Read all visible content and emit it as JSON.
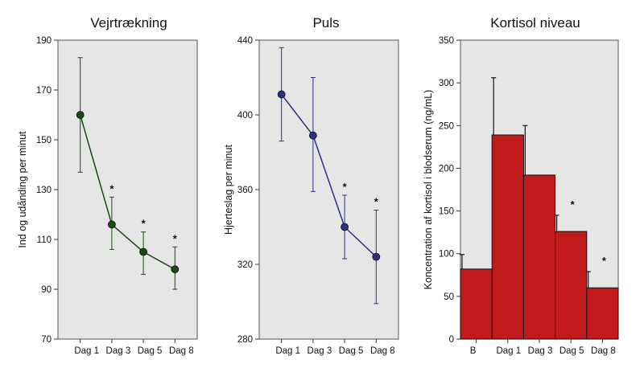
{
  "chart_data": [
    {
      "type": "line",
      "title": "Vejrtrækning",
      "xlabel": "",
      "ylabel": "Ind og udånding per minut",
      "categories": [
        "Dag 1",
        "Dag 3",
        "Dag 5",
        "Dag 8"
      ],
      "values": [
        160,
        116,
        105,
        98
      ],
      "error_low": [
        137,
        106,
        96,
        90
      ],
      "error_high": [
        183,
        127,
        113,
        107
      ],
      "annotations": [
        "",
        "*",
        "*",
        "*"
      ],
      "ylim": [
        70,
        190
      ],
      "yticks": [
        70,
        90,
        110,
        130,
        150,
        170,
        190
      ],
      "color": "#1a4a14",
      "grid": false
    },
    {
      "type": "line",
      "title": "Puls",
      "xlabel": "",
      "ylabel": "Hjerteslag per minut",
      "categories": [
        "Dag 1",
        "Dag 3",
        "Dag 5",
        "Dag 8"
      ],
      "values": [
        411,
        389,
        340,
        324
      ],
      "error_low": [
        386,
        359,
        323,
        299
      ],
      "error_high": [
        436,
        420,
        357,
        349
      ],
      "annotations": [
        "",
        "",
        "*",
        "*"
      ],
      "ylim": [
        280,
        440
      ],
      "yticks": [
        280,
        320,
        360,
        400,
        440
      ],
      "color": "#2e2e82",
      "grid": false
    },
    {
      "type": "bar",
      "title": "Kortisol niveau",
      "xlabel": "",
      "ylabel": "Koncentration af kortisol i blodserum (ng/mL)",
      "categories": [
        "B",
        "Dag 1",
        "Dag 3",
        "Dag 5",
        "Dag 8"
      ],
      "values": [
        82,
        239,
        192,
        126,
        60
      ],
      "error_high": [
        99,
        306,
        250,
        145,
        79
      ],
      "annotations": [
        "",
        "",
        "",
        "*",
        "*"
      ],
      "ylim": [
        0,
        350
      ],
      "yticks": [
        0,
        50,
        100,
        150,
        200,
        250,
        300,
        350
      ],
      "color": "#c01a1a",
      "grid": false
    }
  ],
  "colors": {
    "panel_background": "#e6e6e6",
    "bar_fill": "#c01a1a"
  }
}
